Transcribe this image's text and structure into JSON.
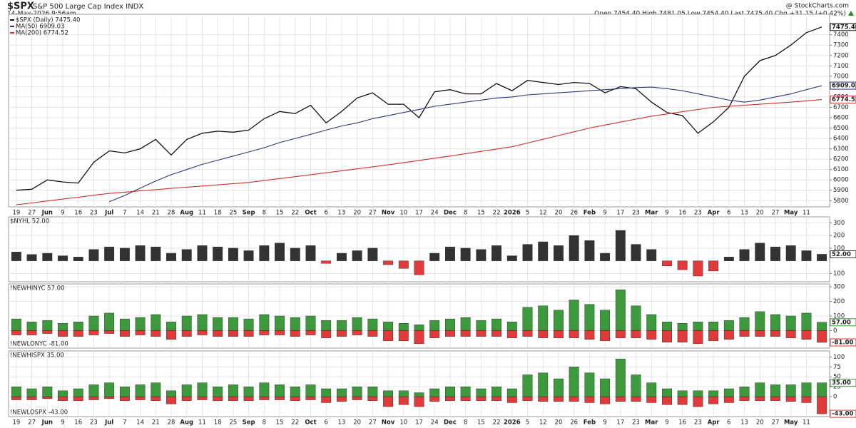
{
  "header": {
    "symbol": "$SPX",
    "name": "S&P 500 Large Cap Index INDX",
    "date": "14-May-2026 9:56am",
    "source": "@ StockCharts.com",
    "quote": "Open 7454.40 High 7481.05 Low 7454.40 Last 7475.40 Chg +31.15 (+0.42%)"
  },
  "chart_data": [
    {
      "type": "line",
      "categories": [
        "19",
        "27",
        "Jun",
        "9",
        "16",
        "23",
        "Jul",
        "7",
        "14",
        "21",
        "28",
        "Aug",
        "11",
        "18",
        "25",
        "Sep",
        "8",
        "15",
        "22",
        "Oct",
        "6",
        "13",
        "20",
        "27",
        "Nov",
        "10",
        "17",
        "24",
        "Dec",
        "8",
        "15",
        "22",
        "2026",
        "5",
        "12",
        "20",
        "26",
        "Feb",
        "9",
        "17",
        "23",
        "Mar",
        "9",
        "16",
        "23",
        "Apr",
        "6",
        "13",
        "20",
        "27",
        "May",
        "11",
        null
      ],
      "series": [
        {
          "name": "$SPX (Daily) 7475.40",
          "color": "#111111",
          "last_label": "7475.40",
          "values": [
            5900,
            5910,
            6000,
            5980,
            5970,
            6170,
            6280,
            6260,
            6300,
            6390,
            6240,
            6390,
            6450,
            6470,
            6460,
            6480,
            6590,
            6660,
            6640,
            6720,
            6550,
            6660,
            6790,
            6840,
            6730,
            6730,
            6600,
            6850,
            6870,
            6830,
            6830,
            6930,
            6860,
            6960,
            6940,
            6920,
            6940,
            6930,
            6840,
            6900,
            6880,
            6750,
            6650,
            6620,
            6450,
            6560,
            6700,
            7000,
            7150,
            7200,
            7300,
            7420,
            7475.4
          ]
        },
        {
          "name": "MA(50) 6909.03",
          "color": "#2b3a7a",
          "last_label": "6909.03",
          "values": [
            null,
            null,
            null,
            null,
            null,
            null,
            5790,
            5850,
            5920,
            5990,
            6050,
            6100,
            6150,
            6190,
            6230,
            6270,
            6310,
            6360,
            6400,
            6440,
            6480,
            6520,
            6550,
            6590,
            6620,
            6650,
            6680,
            6710,
            6730,
            6750,
            6770,
            6790,
            6800,
            6820,
            6830,
            6840,
            6850,
            6860,
            6870,
            6880,
            6890,
            6895,
            6880,
            6860,
            6830,
            6800,
            6770,
            6750,
            6770,
            6800,
            6830,
            6870,
            6909.03
          ]
        },
        {
          "name": "MA(200) 6774.52",
          "color": "#c8322d",
          "last_label": "6774.52",
          "values": [
            5760,
            5778,
            5797,
            5815,
            5833,
            5852,
            5870,
            5882,
            5894,
            5906,
            5918,
            5930,
            5941,
            5952,
            5964,
            5975,
            5994,
            6013,
            6031,
            6050,
            6069,
            6088,
            6107,
            6126,
            6145,
            6166,
            6188,
            6209,
            6230,
            6253,
            6275,
            6298,
            6320,
            6356,
            6392,
            6428,
            6464,
            6500,
            6529,
            6558,
            6586,
            6615,
            6636,
            6658,
            6679,
            6700,
            6710,
            6720,
            6730,
            6740,
            6750,
            6762,
            6774.52
          ]
        }
      ],
      "ylim": [
        5740,
        7570
      ],
      "yticks": [
        5800,
        5900,
        6000,
        6100,
        6200,
        6300,
        6400,
        6500,
        6600,
        6700,
        6800,
        6900,
        7000,
        7100,
        7200,
        7300,
        7400
      ],
      "grid": true
    },
    {
      "type": "bar",
      "series": [
        {
          "name": "$NYHL 52.00",
          "color": "#333333",
          "negative_color": "#e03a3a",
          "last_label": "52.00",
          "values": [
            70,
            50,
            60,
            40,
            30,
            90,
            110,
            100,
            120,
            110,
            60,
            90,
            120,
            110,
            100,
            80,
            120,
            140,
            100,
            120,
            -20,
            60,
            80,
            100,
            -30,
            -60,
            -110,
            60,
            110,
            100,
            90,
            120,
            40,
            130,
            150,
            120,
            200,
            160,
            60,
            240,
            130,
            90,
            -40,
            -70,
            -120,
            -80,
            30,
            90,
            140,
            110,
            120,
            80,
            52
          ]
        }
      ],
      "ylim": [
        -165,
        347
      ],
      "yticks": [
        300,
        200,
        100,
        {
          "value": -100,
          "label": "100"
        }
      ],
      "grid": true
    },
    {
      "type": "bar",
      "series": [
        {
          "name": "!NEWHINYC 57.00",
          "color": "#3c9a3c",
          "last_label": "57.00",
          "values": [
            80,
            60,
            70,
            50,
            60,
            100,
            120,
            80,
            90,
            110,
            60,
            100,
            110,
            90,
            90,
            80,
            110,
            100,
            90,
            100,
            70,
            70,
            90,
            80,
            60,
            50,
            40,
            70,
            80,
            90,
            70,
            80,
            60,
            160,
            170,
            140,
            210,
            180,
            140,
            280,
            170,
            110,
            60,
            50,
            60,
            60,
            70,
            90,
            130,
            110,
            100,
            120,
            57
          ]
        },
        {
          "name": "!NEWLONYC -81.00",
          "color": "#e03a3a",
          "last_label": "-81.00",
          "values": [
            -30,
            -30,
            -20,
            -40,
            -40,
            -30,
            -20,
            -40,
            -30,
            -40,
            -60,
            -40,
            -30,
            -40,
            -40,
            -40,
            -30,
            -30,
            -40,
            -30,
            -50,
            -40,
            -30,
            -40,
            -70,
            -70,
            -90,
            -50,
            -40,
            -40,
            -40,
            -40,
            -50,
            -40,
            -50,
            -50,
            -50,
            -60,
            -70,
            -50,
            -50,
            -60,
            -80,
            -80,
            -90,
            -70,
            -60,
            -40,
            -40,
            -40,
            -50,
            -60,
            -81
          ]
        }
      ],
      "ylim": [
        -120,
        320
      ],
      "yticks": [
        300,
        200,
        100,
        0
      ],
      "grid": true
    },
    {
      "type": "bar",
      "categories": [
        "19",
        "27",
        "Jun",
        "9",
        "16",
        "23",
        "Jul",
        "7",
        "14",
        "21",
        "28",
        "Aug",
        "11",
        "18",
        "25",
        "Sep",
        "8",
        "15",
        "22",
        "Oct",
        "6",
        "13",
        "20",
        "27",
        "Nov",
        "10",
        "17",
        "24",
        "Dec",
        "8",
        "15",
        "22",
        "2026",
        "5",
        "12",
        "20",
        "26",
        "Feb",
        "9",
        "17",
        "23",
        "Mar",
        "9",
        "16",
        "23",
        "Apr",
        "6",
        "13",
        "20",
        "27",
        "May",
        "11",
        null
      ],
      "series": [
        {
          "name": "!NEWHISPX 35.00",
          "color": "#3c9a3c",
          "last_label": "35.00",
          "values": [
            25,
            20,
            25,
            15,
            20,
            30,
            35,
            25,
            30,
            35,
            15,
            30,
            35,
            25,
            30,
            25,
            35,
            30,
            25,
            30,
            20,
            20,
            25,
            25,
            15,
            15,
            10,
            20,
            25,
            25,
            20,
            25,
            20,
            55,
            60,
            45,
            75,
            60,
            45,
            95,
            55,
            35,
            20,
            15,
            15,
            15,
            20,
            25,
            35,
            30,
            30,
            35,
            35
          ]
        },
        {
          "name": "!NEWLOSPX -43.00",
          "color": "#e03a3a",
          "last_label": "-43.00",
          "values": [
            -8,
            -8,
            -5,
            -10,
            -10,
            -8,
            -5,
            -10,
            -8,
            -10,
            -18,
            -10,
            -8,
            -10,
            -10,
            -10,
            -8,
            -8,
            -10,
            -8,
            -15,
            -12,
            -8,
            -10,
            -25,
            -20,
            -25,
            -12,
            -10,
            -10,
            -10,
            -10,
            -15,
            -10,
            -12,
            -12,
            -12,
            -15,
            -18,
            -12,
            -12,
            -15,
            -20,
            -20,
            -25,
            -18,
            -15,
            -10,
            -10,
            -10,
            -12,
            -15,
            -43
          ]
        }
      ],
      "ylim": [
        -50,
        115
      ],
      "yticks": [
        100,
        75,
        50,
        25,
        0
      ],
      "grid": true
    }
  ]
}
